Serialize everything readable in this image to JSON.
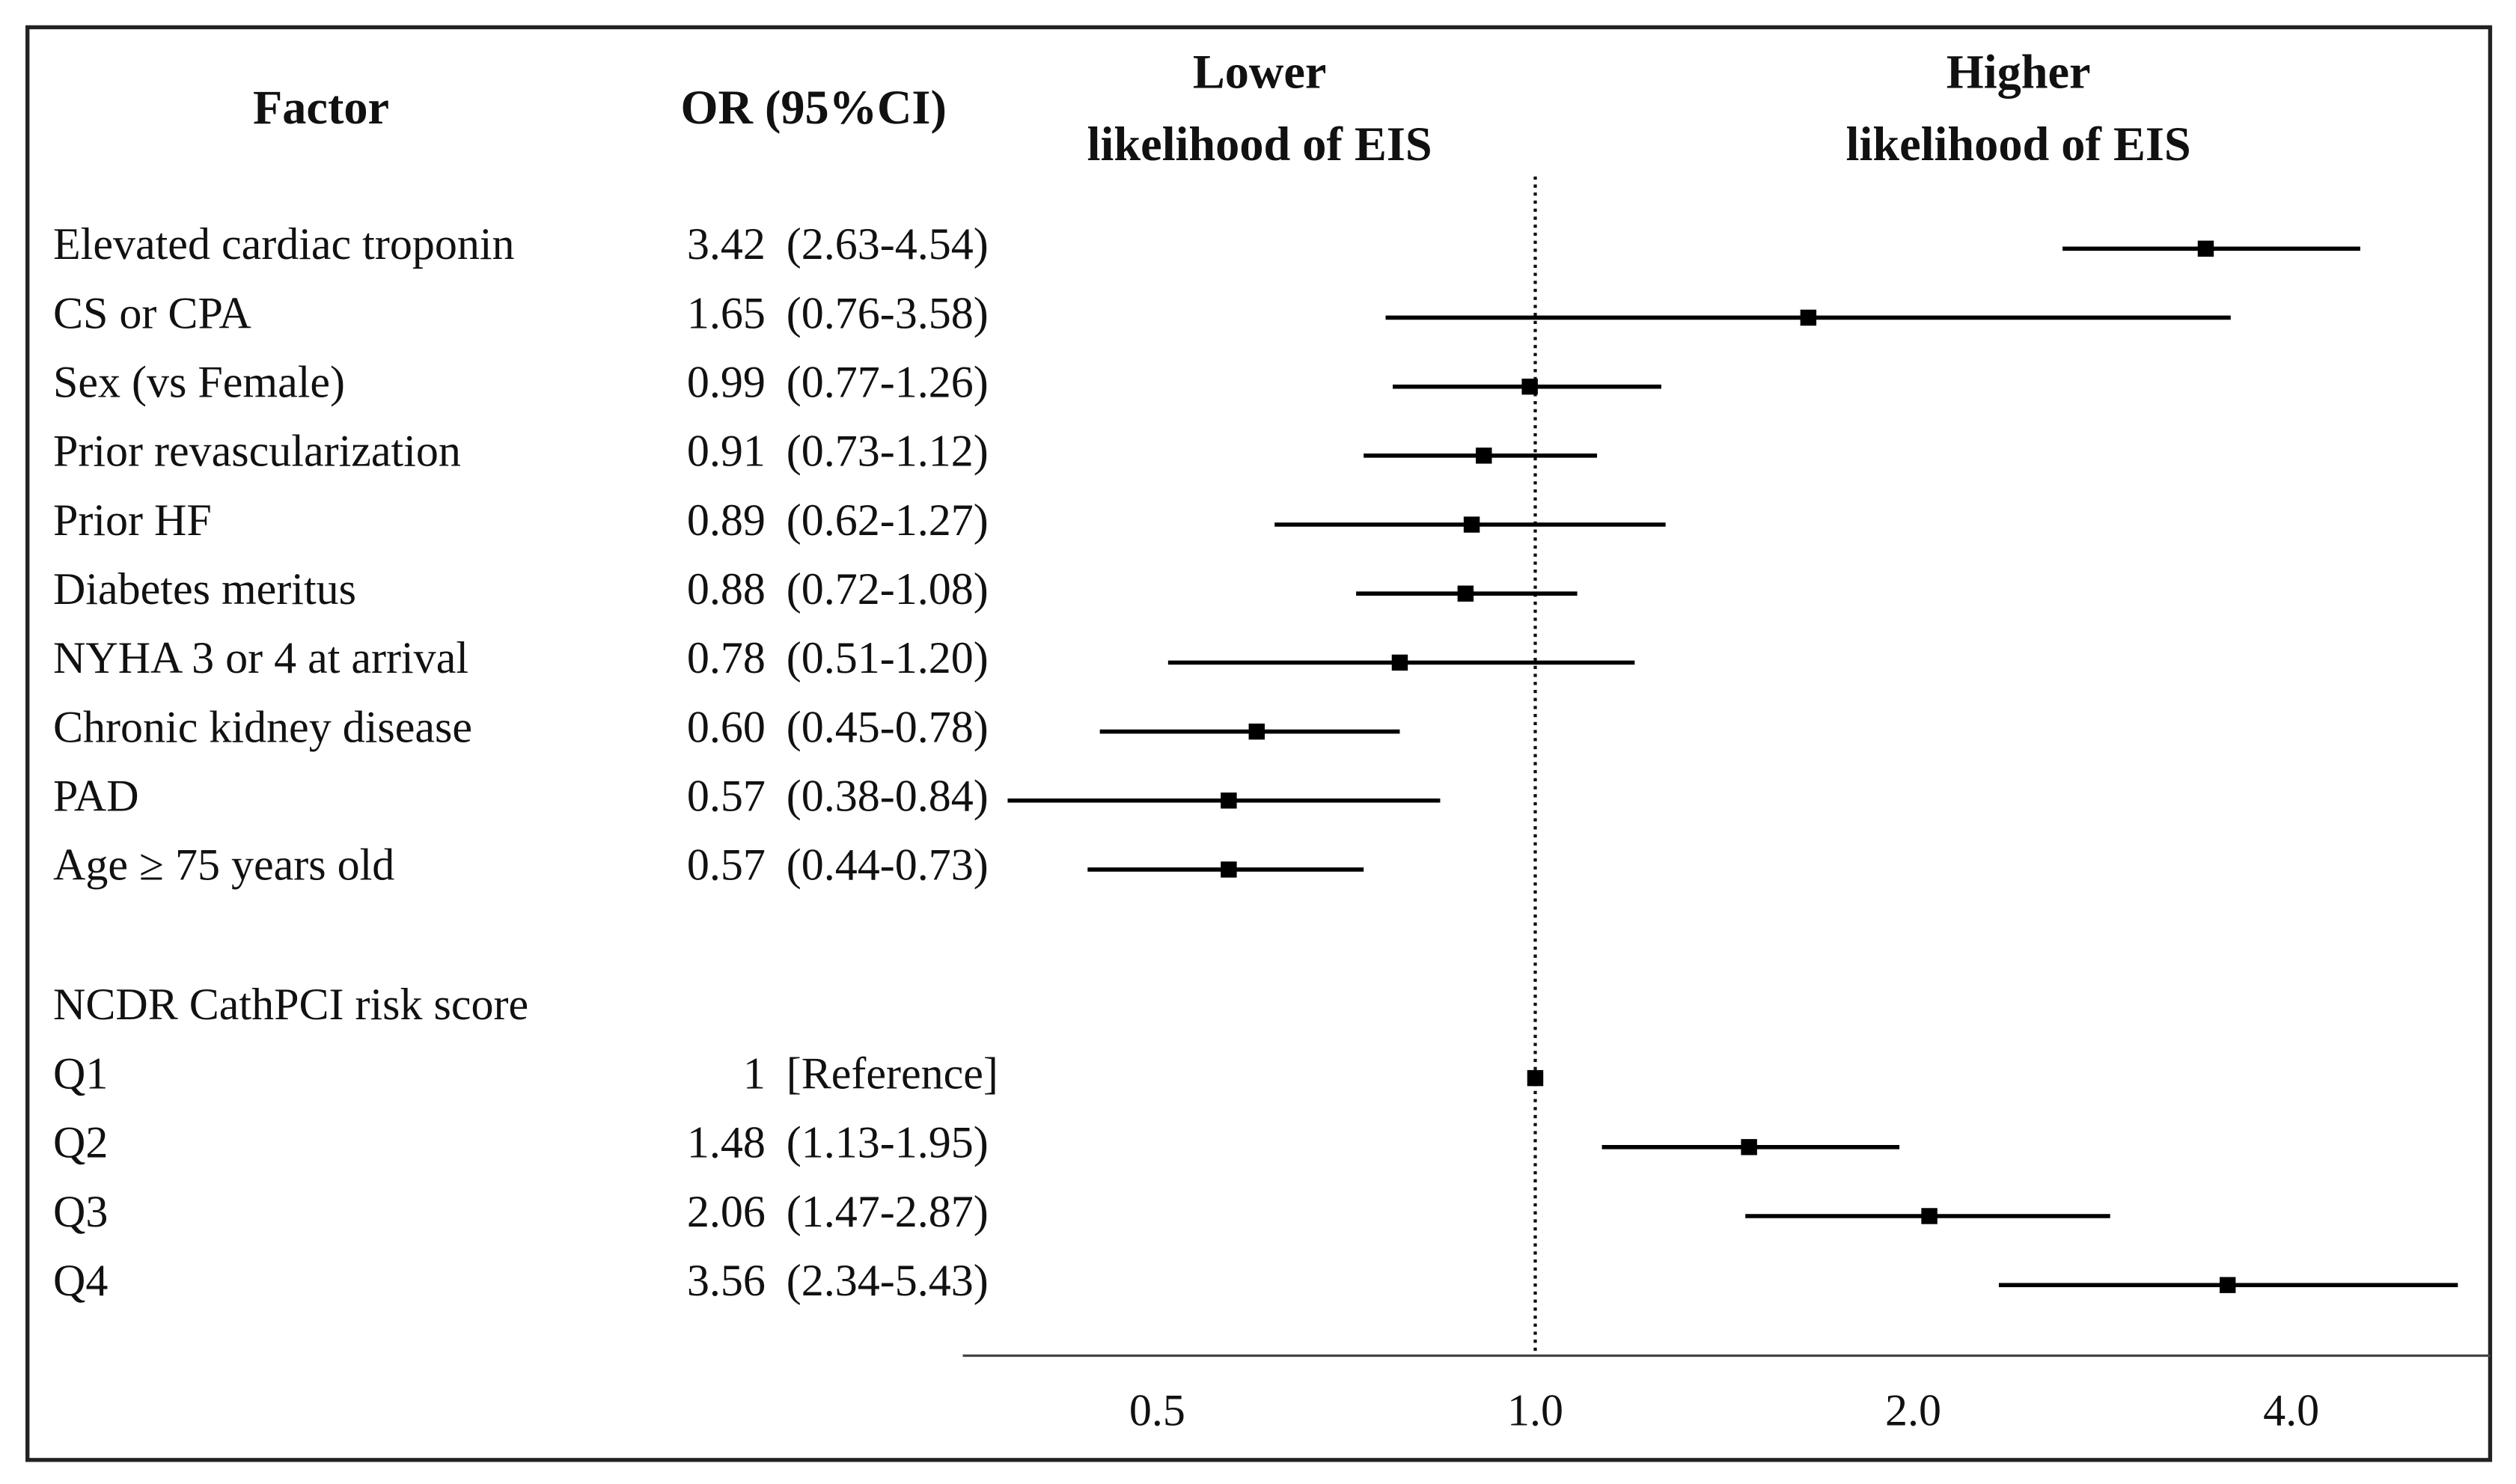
{
  "chart_data": {
    "type": "forest",
    "column_headers": [
      "Factor",
      "OR (95%CI)"
    ],
    "left_label": [
      "Lower",
      "likelihood of EIS"
    ],
    "right_label": [
      "Higher",
      "likelihood of EIS"
    ],
    "categories": [
      "Elevated cardiac troponin",
      "CS or CPA",
      "Sex (vs Female)",
      "Prior revascularization",
      "Prior HF",
      "Diabetes meritus",
      "NYHA 3 or 4 at arrival",
      "Chronic kidney disease",
      "PAD",
      "Age ≥ 75 years old",
      "NCDR CathPCI risk score",
      "Q1",
      "Q2",
      "Q3",
      "Q4"
    ],
    "values": [
      3.42,
      1.65,
      0.99,
      0.91,
      0.89,
      0.88,
      0.78,
      0.6,
      0.57,
      0.57,
      null,
      1,
      1.48,
      2.06,
      3.56
    ],
    "value_labels": [
      "3.42",
      "1.65",
      "0.99",
      "0.91",
      "0.89",
      "0.88",
      "0.78",
      "0.60",
      "0.57",
      "0.57",
      null,
      "1",
      "1.48",
      "2.06",
      "3.56"
    ],
    "lower": [
      2.63,
      0.76,
      0.77,
      0.73,
      0.62,
      0.72,
      0.51,
      0.45,
      0.38,
      0.44,
      null,
      null,
      1.13,
      1.47,
      2.34
    ],
    "upper": [
      4.54,
      3.58,
      1.26,
      1.12,
      1.27,
      1.08,
      1.2,
      0.78,
      0.84,
      0.73,
      null,
      null,
      1.95,
      2.87,
      5.43
    ],
    "ci_labels": [
      "(2.63-4.54)",
      "(0.76-3.58)",
      "(0.77-1.26)",
      "(0.73-1.12)",
      "(0.62-1.27)",
      "(0.72-1.08)",
      "(0.51-1.20)",
      "(0.45-0.78)",
      "(0.38-0.84)",
      "(0.44-0.73)",
      null,
      "[Reference]",
      "(1.13-1.95)",
      "(1.47-2.87)",
      "(2.34-5.43)"
    ],
    "xscale": "log",
    "xlim": [
      0.35,
      5.4
    ],
    "xticks": [
      0.5,
      {
        "value": 1,
        "label": "1.0"
      },
      {
        "value": 2,
        "label": "2.0"
      },
      {
        "value": 4,
        "label": "4.0"
      }
    ],
    "reference_line": 1,
    "color": "#000000"
  }
}
